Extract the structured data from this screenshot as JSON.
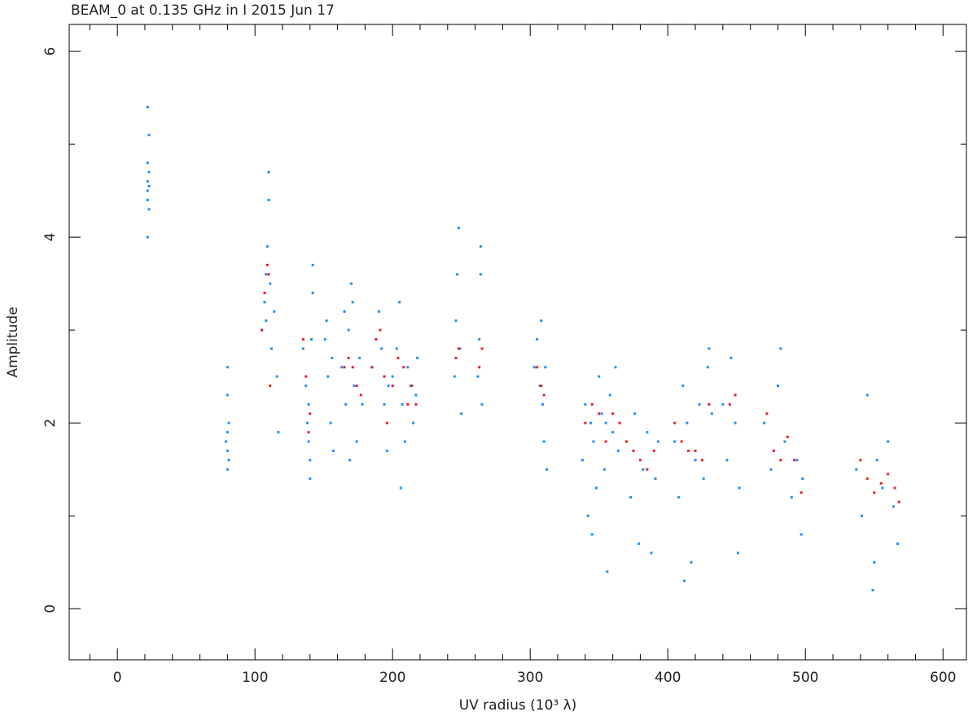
{
  "chart_data": {
    "type": "scatter",
    "title": "BEAM_0 at 0.135 GHz in I  2015 Jun 17",
    "x_label": "UV radius  (10³ λ)",
    "y_label": "Amplitude",
    "xlim": [
      -35,
      617
    ],
    "ylim": [
      -0.55,
      6.29
    ],
    "xticks": [
      0,
      100,
      200,
      300,
      400,
      500,
      600
    ],
    "yticks": [
      0,
      2,
      4,
      6
    ],
    "xminorticks": [
      -20,
      20,
      40,
      60,
      80,
      120,
      140,
      160,
      180,
      220,
      240,
      260,
      280,
      320,
      340,
      360,
      380,
      420,
      440,
      460,
      480,
      520,
      540,
      560,
      580
    ],
    "yminorticks": [
      1,
      3,
      5
    ],
    "series": [
      {
        "color": "#1e90ff",
        "x": [
          22,
          22,
          22,
          23,
          23,
          22,
          23,
          22,
          22,
          23,
          80,
          80,
          81,
          79,
          80,
          81,
          80,
          80,
          105,
          107,
          108,
          109,
          110,
          111,
          112,
          114,
          116,
          117,
          110,
          108,
          135,
          137,
          138,
          139,
          140,
          141,
          142,
          142,
          139,
          140,
          151,
          152,
          153,
          155,
          156,
          157,
          163,
          165,
          166,
          168,
          170,
          172,
          174,
          176,
          178,
          169,
          171,
          185,
          188,
          190,
          192,
          194,
          196,
          197,
          200,
          203,
          205,
          207,
          209,
          211,
          213,
          215,
          217,
          218,
          206,
          245,
          246,
          247,
          248,
          249,
          250,
          262,
          263,
          264,
          265,
          264,
          303,
          305,
          307,
          308,
          309,
          310,
          311,
          312,
          338,
          340,
          342,
          344,
          346,
          348,
          350,
          352,
          354,
          356,
          358,
          360,
          362,
          364,
          345,
          355,
          370,
          373,
          376,
          379,
          382,
          385,
          388,
          391,
          393,
          405,
          408,
          411,
          414,
          417,
          420,
          423,
          426,
          429,
          432,
          412,
          430,
          440,
          443,
          446,
          449,
          452,
          451,
          470,
          475,
          480,
          485,
          490,
          494,
          497,
          498,
          482,
          537,
          541,
          545,
          549,
          552,
          556,
          560,
          564,
          567,
          550
        ],
        "y": [
          4.5,
          4.6,
          4.4,
          4.7,
          4.3,
          4.8,
          5.1,
          5.4,
          4.0,
          4.55,
          1.9,
          1.7,
          2.0,
          1.8,
          2.3,
          1.6,
          2.6,
          1.5,
          3.0,
          3.3,
          3.6,
          3.9,
          4.4,
          3.5,
          2.8,
          3.2,
          2.5,
          1.9,
          4.7,
          3.1,
          2.8,
          2.4,
          2.0,
          1.8,
          1.6,
          2.9,
          3.4,
          3.7,
          2.2,
          1.4,
          2.9,
          3.1,
          2.5,
          2.0,
          2.7,
          1.7,
          2.6,
          3.2,
          2.2,
          3.0,
          3.5,
          2.4,
          1.8,
          2.7,
          2.2,
          1.6,
          3.3,
          2.6,
          2.9,
          3.2,
          2.8,
          2.2,
          1.7,
          2.4,
          2.5,
          2.8,
          3.3,
          2.2,
          1.8,
          2.6,
          2.4,
          2.0,
          2.3,
          2.7,
          1.3,
          2.5,
          3.1,
          3.6,
          4.1,
          2.8,
          2.1,
          2.5,
          2.9,
          3.6,
          2.2,
          3.9,
          2.6,
          2.9,
          2.4,
          3.1,
          2.2,
          1.8,
          2.6,
          1.5,
          1.6,
          2.2,
          1.0,
          2.0,
          1.8,
          1.3,
          2.5,
          2.1,
          1.5,
          0.4,
          2.3,
          1.9,
          2.6,
          1.7,
          0.8,
          2.0,
          1.8,
          1.2,
          2.1,
          0.7,
          1.5,
          1.9,
          0.6,
          1.4,
          1.8,
          1.8,
          1.2,
          2.4,
          2.0,
          0.5,
          1.6,
          2.2,
          1.4,
          2.6,
          2.1,
          0.3,
          2.8,
          2.2,
          1.6,
          2.7,
          2.0,
          1.3,
          0.6,
          2.0,
          1.5,
          2.4,
          1.8,
          1.2,
          1.6,
          0.8,
          1.4,
          2.8,
          1.5,
          1.0,
          2.3,
          0.2,
          1.6,
          1.3,
          1.8,
          1.1,
          0.7,
          0.5
        ]
      },
      {
        "color": "#e8202a",
        "x": [
          105,
          107,
          109,
          110,
          111,
          135,
          137,
          139,
          140,
          165,
          168,
          171,
          174,
          177,
          185,
          188,
          191,
          194,
          196,
          200,
          204,
          208,
          211,
          214,
          217,
          246,
          248,
          263,
          265,
          305,
          308,
          310,
          340,
          345,
          350,
          355,
          360,
          365,
          370,
          375,
          380,
          385,
          390,
          405,
          410,
          415,
          420,
          425,
          430,
          445,
          449,
          472,
          477,
          482,
          487,
          492,
          497,
          540,
          545,
          550,
          555,
          560,
          565,
          568
        ],
        "y": [
          3.0,
          3.4,
          3.7,
          3.6,
          2.4,
          2.9,
          2.5,
          1.9,
          2.1,
          2.6,
          2.7,
          2.6,
          2.4,
          2.3,
          2.6,
          2.9,
          3.0,
          2.5,
          2.0,
          2.4,
          2.7,
          2.6,
          2.2,
          2.4,
          2.2,
          2.7,
          2.8,
          2.6,
          2.8,
          2.6,
          2.4,
          2.3,
          2.0,
          2.2,
          2.1,
          1.8,
          2.1,
          2.0,
          1.8,
          1.7,
          1.6,
          1.5,
          1.7,
          2.0,
          1.8,
          1.7,
          1.7,
          1.6,
          2.2,
          2.2,
          2.3,
          2.1,
          1.7,
          1.6,
          1.85,
          1.6,
          1.25,
          1.6,
          1.4,
          1.25,
          1.35,
          1.45,
          1.3,
          1.15
        ]
      }
    ]
  }
}
